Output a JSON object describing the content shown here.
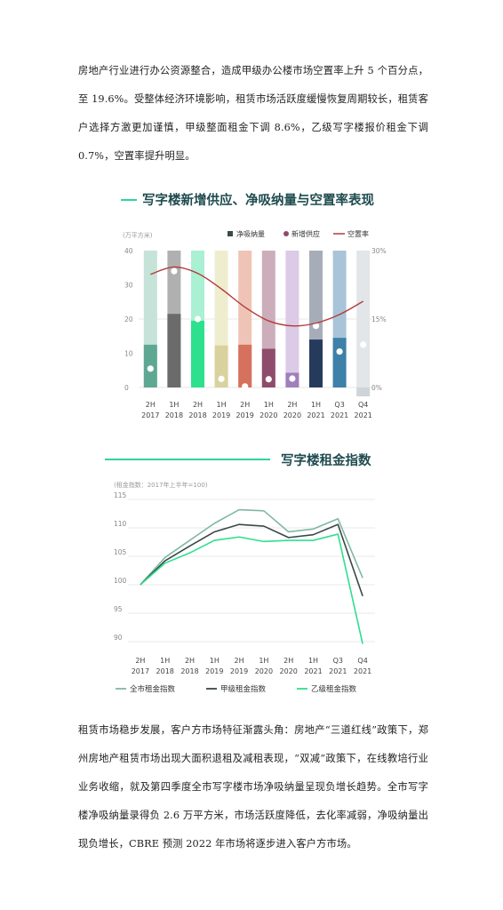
{
  "paragraph1": "房地产行业进行办公资源整合，造成甲级办公楼市场空置率上升 5 个百分点，至 19.6%。受整体经济环境影响，租赁市场活跃度缓慢恢复周期较长，租赁客户选择方激更加谨慎，甲级整面租金下调 8.6%，乙级写字楼报价租金下调 0.7%，空置率提升明显。",
  "paragraph2": "租赁市场稳步发展，客户方市场特征渐露头角：房地产“三道红线”政策下，郑州房地产租赁市场出现大面积退租及减租表现，“双减”政策下，在线教培行业业务收缩，就及第四季度全市写字楼市场净吸纳量呈现负增长趋势。全市写字楼净吸纳量录得负 2.6 万平方米，市场活跃度降低，去化率减弱，净吸纳量出现负增长，CBRE 预测 2022 年市场将逐步进入客户方市场。",
  "chart_data": [
    {
      "type": "bar",
      "title": "写字楼新增供应、净吸纳量与空置率表现",
      "ylabel": "(万平方米)",
      "ylim": [
        0,
        40
      ],
      "y_ticks": [
        "40",
        "30",
        "20",
        "10",
        "0"
      ],
      "y2lim": [
        0,
        30
      ],
      "y2_ticks": [
        "30%",
        "15%",
        "0%"
      ],
      "categories": [
        {
          "period": "2H",
          "year": "2017"
        },
        {
          "period": "1H",
          "year": "2018"
        },
        {
          "period": "2H",
          "year": "2018"
        },
        {
          "period": "1H",
          "year": "2019"
        },
        {
          "period": "2H",
          "year": "2019"
        },
        {
          "period": "1H",
          "year": "2020"
        },
        {
          "period": "2H",
          "year": "2020"
        },
        {
          "period": "1H",
          "year": "2021"
        },
        {
          "period": "Q3",
          "year": "2021"
        },
        {
          "period": "Q4",
          "year": "2021"
        }
      ],
      "legend": {
        "net_absorption": "净吸纳量",
        "new_supply": "新增供应",
        "vacancy": "空置率"
      },
      "series": [
        {
          "name": "净吸纳量",
          "values": [
            12.5,
            21.5,
            19.5,
            12.3,
            12.5,
            11.3,
            4.3,
            14.0,
            14.5,
            -2.6
          ]
        },
        {
          "name": "新增供应",
          "values": [
            5.5,
            34.0,
            20.0,
            2.5,
            0.3,
            2.4,
            2.6,
            18.0,
            10.5,
            12.5
          ]
        },
        {
          "name": "空置率",
          "values": [
            24.8,
            26.4,
            25.0,
            21.6,
            17.6,
            14.6,
            13.5,
            14.1,
            16.0,
            18.9
          ]
        }
      ],
      "bar_colors": [
        "#5ea893",
        "#6b6b6b",
        "#2de08d",
        "#d9d29e",
        "#d6715e",
        "#8e4b6b",
        "#a07fbc",
        "#263a5c",
        "#3d80a8",
        "#cfd4d8"
      ],
      "bar_bg_colors": [
        "#c5e3d9",
        "#b0b0b0",
        "#aaf0d2",
        "#efedcf",
        "#efc4b6",
        "#ccaebb",
        "#dbcbe6",
        "#a6adb9",
        "#a9c4d8",
        "#e3e6e8"
      ],
      "legend_colors": {
        "net_absorption": "#3b4a4a",
        "new_supply": "#8e4b6b",
        "vacancy": "#b33a3a"
      }
    },
    {
      "type": "line",
      "title": "写字楼租金指数",
      "ylabel": "(租金指数：2017年上半年=100)",
      "ylim": [
        90,
        115
      ],
      "y_ticks": [
        "115",
        "110",
        "105",
        "100",
        "95",
        "90"
      ],
      "categories": [
        {
          "period": "2H",
          "year": "2017"
        },
        {
          "period": "1H",
          "year": "2018"
        },
        {
          "period": "2H",
          "year": "2018"
        },
        {
          "period": "1H",
          "year": "2019"
        },
        {
          "period": "2H",
          "year": "2019"
        },
        {
          "period": "1H",
          "year": "2020"
        },
        {
          "period": "2H",
          "year": "2020"
        },
        {
          "period": "1H",
          "year": "2021"
        },
        {
          "period": "Q3",
          "year": "2021"
        },
        {
          "period": "Q4",
          "year": "2021"
        }
      ],
      "series": [
        {
          "name": "全市租金指数",
          "color": "#7fb8a4",
          "values": [
            100.0,
            104.8,
            107.8,
            110.8,
            113.2,
            113.0,
            109.3,
            109.8,
            111.6,
            101.2
          ]
        },
        {
          "name": "甲级租金指数",
          "color": "#3a4748",
          "values": [
            100.0,
            104.2,
            106.8,
            109.3,
            110.6,
            110.3,
            108.3,
            108.8,
            110.6,
            98.0
          ]
        },
        {
          "name": "乙级租金指数",
          "color": "#2de08d",
          "values": [
            100.0,
            103.8,
            105.6,
            107.8,
            108.4,
            107.6,
            107.8,
            107.8,
            108.9,
            89.6
          ]
        }
      ]
    }
  ]
}
